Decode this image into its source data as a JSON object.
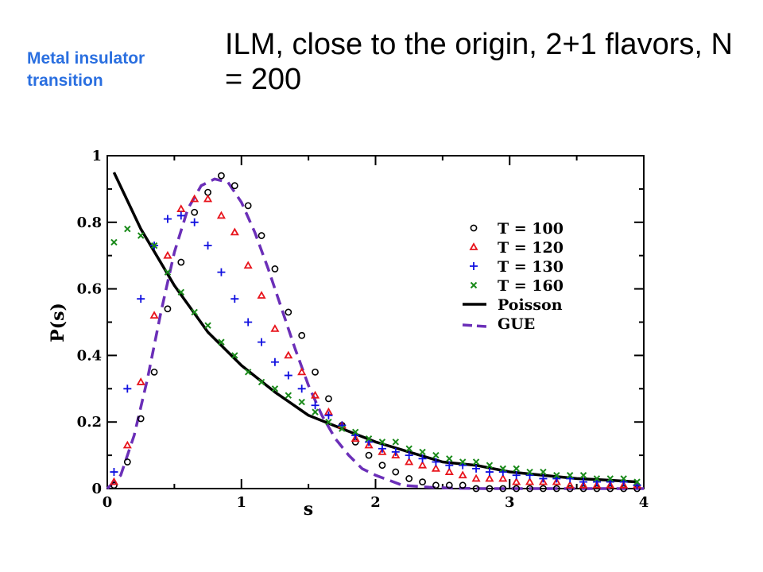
{
  "slide": {
    "side_label": "Metal insulator transition",
    "title": "ILM, close to the origin, 2+1 flavors, N = 200"
  },
  "chart_data": {
    "type": "scatter",
    "title": "ILM, close to the origin, 2+1 flavors, N = 200",
    "xlabel": "s",
    "ylabel": "P(s)",
    "xlim": [
      0,
      4
    ],
    "ylim": [
      0,
      1
    ],
    "x_ticks": [
      "0",
      "1",
      "2",
      "3",
      "4"
    ],
    "y_ticks": [
      "0",
      "0.2",
      "0.4",
      "0.6",
      "0.8",
      "1"
    ],
    "grid": false,
    "legend_position": "top-right",
    "colors": {
      "T100": "#000000",
      "T120": "#e8141c",
      "T130": "#1010e0",
      "T160": "#1a8a1a",
      "poisson": "#000000",
      "gue": "#6b2fb8"
    },
    "series": [
      {
        "name": "T = 100",
        "marker": "circle",
        "color": "#000000",
        "x": [
          0.05,
          0.15,
          0.25,
          0.35,
          0.45,
          0.55,
          0.65,
          0.75,
          0.85,
          0.95,
          1.05,
          1.15,
          1.25,
          1.35,
          1.45,
          1.55,
          1.65,
          1.75,
          1.85,
          1.95,
          2.05,
          2.15,
          2.25,
          2.35,
          2.45,
          2.55,
          2.65,
          2.75,
          2.85,
          2.95,
          3.05,
          3.15,
          3.25,
          3.35,
          3.45,
          3.55,
          3.65,
          3.75,
          3.85,
          3.95
        ],
        "y": [
          0.01,
          0.08,
          0.21,
          0.35,
          0.54,
          0.68,
          0.83,
          0.89,
          0.94,
          0.91,
          0.85,
          0.76,
          0.66,
          0.53,
          0.46,
          0.35,
          0.27,
          0.19,
          0.14,
          0.1,
          0.07,
          0.05,
          0.03,
          0.02,
          0.01,
          0.01,
          0.01,
          0.0,
          0.0,
          0.0,
          0.0,
          0.0,
          0.0,
          0.0,
          0.0,
          0.0,
          0.0,
          0.0,
          0.0,
          0.0
        ]
      },
      {
        "name": "T = 120",
        "marker": "triangle",
        "color": "#e8141c",
        "x": [
          0.05,
          0.15,
          0.25,
          0.35,
          0.45,
          0.55,
          0.65,
          0.75,
          0.85,
          0.95,
          1.05,
          1.15,
          1.25,
          1.35,
          1.45,
          1.55,
          1.65,
          1.75,
          1.85,
          1.95,
          2.05,
          2.15,
          2.25,
          2.35,
          2.45,
          2.55,
          2.65,
          2.75,
          2.85,
          2.95,
          3.05,
          3.15,
          3.25,
          3.35,
          3.45,
          3.55,
          3.65,
          3.75,
          3.85,
          3.95
        ],
        "y": [
          0.02,
          0.13,
          0.32,
          0.52,
          0.7,
          0.84,
          0.87,
          0.87,
          0.82,
          0.77,
          0.67,
          0.58,
          0.48,
          0.4,
          0.35,
          0.28,
          0.23,
          0.19,
          0.15,
          0.13,
          0.11,
          0.1,
          0.08,
          0.07,
          0.06,
          0.05,
          0.04,
          0.03,
          0.03,
          0.03,
          0.02,
          0.02,
          0.02,
          0.02,
          0.01,
          0.01,
          0.01,
          0.01,
          0.01,
          0.01
        ]
      },
      {
        "name": "T = 130",
        "marker": "plus",
        "color": "#1010e0",
        "x": [
          0.05,
          0.15,
          0.25,
          0.35,
          0.45,
          0.55,
          0.65,
          0.75,
          0.85,
          0.95,
          1.05,
          1.15,
          1.25,
          1.35,
          1.45,
          1.55,
          1.65,
          1.75,
          1.85,
          1.95,
          2.05,
          2.15,
          2.25,
          2.35,
          2.45,
          2.55,
          2.65,
          2.75,
          2.85,
          2.95,
          3.05,
          3.15,
          3.25,
          3.35,
          3.45,
          3.55,
          3.65,
          3.75,
          3.85,
          3.95
        ],
        "y": [
          0.05,
          0.3,
          0.57,
          0.73,
          0.81,
          0.82,
          0.8,
          0.73,
          0.65,
          0.57,
          0.5,
          0.44,
          0.38,
          0.34,
          0.3,
          0.25,
          0.22,
          0.19,
          0.16,
          0.14,
          0.12,
          0.11,
          0.1,
          0.09,
          0.08,
          0.07,
          0.07,
          0.06,
          0.05,
          0.05,
          0.04,
          0.04,
          0.03,
          0.03,
          0.03,
          0.02,
          0.02,
          0.02,
          0.02,
          0.01
        ]
      },
      {
        "name": "T = 160",
        "marker": "cross",
        "color": "#1a8a1a",
        "x": [
          0.05,
          0.15,
          0.25,
          0.35,
          0.45,
          0.55,
          0.65,
          0.75,
          0.85,
          0.95,
          1.05,
          1.15,
          1.25,
          1.35,
          1.45,
          1.55,
          1.65,
          1.75,
          1.85,
          1.95,
          2.05,
          2.15,
          2.25,
          2.35,
          2.45,
          2.55,
          2.65,
          2.75,
          2.85,
          2.95,
          3.05,
          3.15,
          3.25,
          3.35,
          3.45,
          3.55,
          3.65,
          3.75,
          3.85,
          3.95
        ],
        "y": [
          0.74,
          0.78,
          0.76,
          0.73,
          0.65,
          0.59,
          0.53,
          0.49,
          0.44,
          0.4,
          0.35,
          0.32,
          0.3,
          0.28,
          0.26,
          0.23,
          0.2,
          0.18,
          0.17,
          0.15,
          0.14,
          0.14,
          0.12,
          0.11,
          0.1,
          0.09,
          0.08,
          0.08,
          0.07,
          0.06,
          0.06,
          0.05,
          0.05,
          0.04,
          0.04,
          0.04,
          0.03,
          0.03,
          0.03,
          0.02
        ]
      },
      {
        "name": "Poisson",
        "marker": "line",
        "color": "#000000",
        "x": [
          0.05,
          0.25,
          0.5,
          0.75,
          1.0,
          1.25,
          1.5,
          1.75,
          2.0,
          2.25,
          2.5,
          2.75,
          3.0,
          3.25,
          3.5,
          3.75,
          3.95
        ],
        "y": [
          0.95,
          0.78,
          0.61,
          0.47,
          0.37,
          0.29,
          0.22,
          0.18,
          0.14,
          0.11,
          0.08,
          0.07,
          0.05,
          0.04,
          0.03,
          0.025,
          0.02
        ]
      },
      {
        "name": "GUE",
        "marker": "dashed",
        "color": "#6b2fb8",
        "x": [
          0.0,
          0.1,
          0.2,
          0.3,
          0.4,
          0.5,
          0.6,
          0.7,
          0.8,
          0.9,
          1.0,
          1.1,
          1.2,
          1.3,
          1.4,
          1.5,
          1.6,
          1.7,
          1.8,
          1.9,
          2.0,
          2.2,
          2.4,
          2.6,
          2.8,
          3.0,
          3.5,
          4.0
        ],
        "y": [
          0.0,
          0.04,
          0.16,
          0.33,
          0.53,
          0.71,
          0.84,
          0.91,
          0.93,
          0.92,
          0.86,
          0.77,
          0.66,
          0.54,
          0.42,
          0.31,
          0.22,
          0.15,
          0.1,
          0.06,
          0.04,
          0.01,
          0.004,
          0.001,
          0.0,
          0.0,
          0.0,
          0.0
        ]
      }
    ]
  }
}
